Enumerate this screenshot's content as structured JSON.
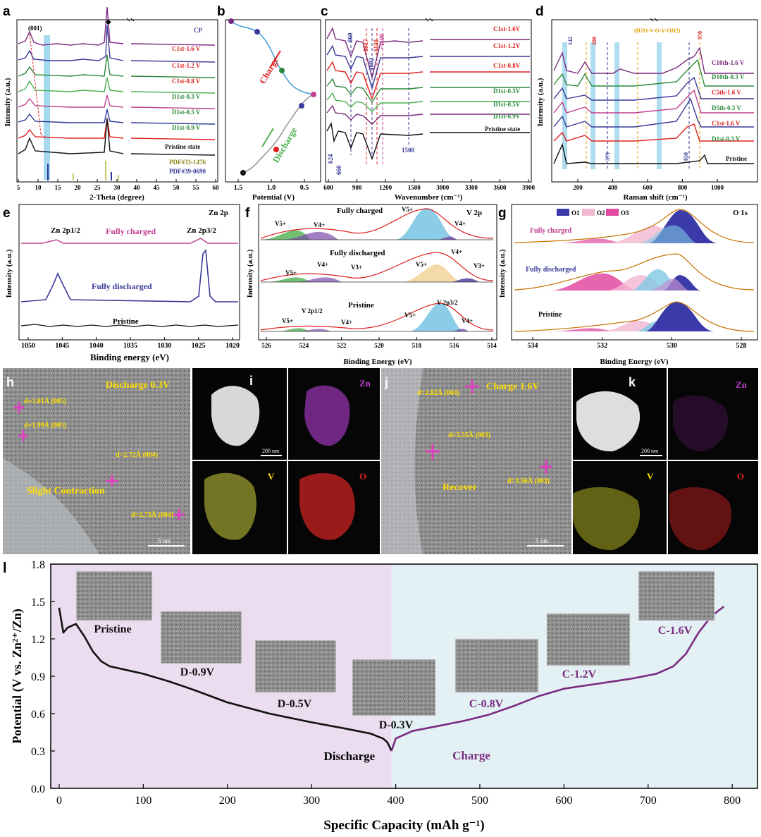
{
  "panels": {
    "a": {
      "letter": "a",
      "xlabel": "2-Theta (degree)",
      "ylabel": "Intensity (a.u.)",
      "xticks": [
        "5",
        "10",
        "15",
        "20",
        "25",
        "30",
        "40",
        "45",
        "50",
        "55",
        "60"
      ],
      "peak_label": "(001)",
      "legend": "CP",
      "trace_labels": [
        "C1st-1.6 V",
        "C1st-1.2 V",
        "C1st-0.8 V",
        "D1st-0.3 V",
        "D1st-0.5 V",
        "D1st-0.9 V",
        "Pristine state"
      ],
      "pdf1": "PDF#33-1476",
      "pdf2": "PDF#39-0690"
    },
    "b": {
      "letter": "b",
      "xlabel": "Potential (V)",
      "xticks": [
        "1.5",
        "1.0",
        "0.5"
      ],
      "charge": "Charge",
      "discharge": "Discharge"
    },
    "c": {
      "letter": "c",
      "xlabel": "Wavenumber (cm⁻¹)",
      "xticks": [
        "600",
        "900",
        "1200",
        "1500",
        "3000",
        "3300",
        "3600",
        "3900"
      ],
      "trace_labels": [
        "C1st-1.6V",
        "C1st-1.2V",
        "C1st-0.8V",
        "D1st-0.3V",
        "D1st-0.5V",
        "D1st-0.9V",
        "Pristine state"
      ],
      "peaks": [
        "860",
        "~1017",
        "1092",
        "~1130",
        "~1190",
        "624",
        "660",
        "1500"
      ]
    },
    "d": {
      "letter": "d",
      "xlabel": "Raman shift (cm⁻¹)",
      "ylabel": "Intensity (a.u.)",
      "xticks": [
        "200",
        "400",
        "600",
        "800",
        "1000"
      ],
      "trace_labels": [
        "C10th-1.6 V",
        "D10th-0.3 V",
        "C5th-1.6 V",
        "D5th-0.3 V",
        "C1st-1.6 V",
        "D1st-0.3 V",
        "Pristine"
      ],
      "peaks": [
        "142",
        "280",
        "(H2O-V-O-V-OH2)",
        "970",
        "379",
        "850"
      ]
    },
    "e": {
      "letter": "e",
      "title": "Zn 2p",
      "xlabel": "Binding energy (eV)",
      "ylabel": "Intensity (a.u.)",
      "xticks": [
        "1050",
        "1045",
        "1040",
        "1035",
        "1030",
        "1025",
        "1020"
      ],
      "peak_left": "Zn 2p1/2",
      "peak_right": "Zn 2p3/2",
      "labels": [
        "Fully charged",
        "Fully discharged",
        "Pristine"
      ]
    },
    "f": {
      "letter": "f",
      "title": "V 2p",
      "xlabel": "Binding Energy (eV)",
      "ylabel": "Intensity (a.u.)",
      "xticks": [
        "526",
        "524",
        "522",
        "520",
        "518",
        "516",
        "514"
      ],
      "labels": [
        "Fully charged",
        "Fully discharged",
        "Pristine"
      ],
      "species": [
        "V5+",
        "V4+",
        "V3+"
      ],
      "sub_left": "V 2p1/2",
      "sub_right": "V 2p3/2"
    },
    "g": {
      "letter": "g",
      "title": "O 1s",
      "xlabel": "Binding Energy (eV)",
      "ylabel": "Intensity (a.u.)",
      "xticks": [
        "534",
        "532",
        "530",
        "528"
      ],
      "legend": [
        "O1",
        "O2",
        "O3"
      ],
      "labels": [
        "Fully charged",
        "Fully discharged",
        "Pristine"
      ]
    },
    "h": {
      "letter": "h",
      "title": "Discharge 0.3V",
      "annotations": [
        "d=3.01Å (005)",
        "d=1.99Å (005)",
        "d=2.72Å (004)",
        "d=2.73Å (004)"
      ],
      "note": "Slight Contraction",
      "scale": "5 nm"
    },
    "i": {
      "letter": "i",
      "scale": "200 nm",
      "elements": [
        "Zn",
        "V",
        "O"
      ]
    },
    "j": {
      "letter": "j",
      "title": "Charge 1.6V",
      "annotations": [
        "d=2.82Å (004)",
        "d=3.55Å (003)",
        "d=3.56Å (003)"
      ],
      "note": "Recover",
      "scale": "5 nm"
    },
    "k": {
      "letter": "k",
      "scale": "200 nm",
      "elements": [
        "Zn",
        "V",
        "O"
      ]
    }
  },
  "chart_data": {
    "type": "line",
    "letter": "l",
    "xlabel": "Specific Capacity (mAh g⁻¹)",
    "ylabel": "Potential (V vs. Zn²⁺/Zn)",
    "xlim": [
      -10,
      830
    ],
    "ylim": [
      0.0,
      1.8
    ],
    "xticks": [
      "0",
      "100",
      "200",
      "300",
      "400",
      "500",
      "600",
      "700",
      "800"
    ],
    "yticks": [
      "0.0",
      "0.3",
      "0.6",
      "0.9",
      "1.2",
      "1.5",
      "1.8"
    ],
    "regions": [
      {
        "name": "Discharge",
        "from": -10,
        "to": 395,
        "color": "#ecdcef"
      },
      {
        "name": "Charge",
        "from": 395,
        "to": 830,
        "color": "#e3f1f4"
      }
    ],
    "series": [
      {
        "name": "Discharge",
        "color": "#111111",
        "x": [
          0,
          5,
          10,
          20,
          30,
          40,
          50,
          60,
          80,
          100,
          130,
          160,
          200,
          250,
          300,
          340,
          370,
          385,
          390,
          393,
          395
        ],
        "y": [
          1.45,
          1.25,
          1.29,
          1.32,
          1.22,
          1.1,
          1.02,
          0.98,
          0.95,
          0.92,
          0.86,
          0.79,
          0.69,
          0.6,
          0.53,
          0.48,
          0.44,
          0.4,
          0.37,
          0.33,
          0.3
        ]
      },
      {
        "name": "Charge",
        "color": "#7a2a80",
        "x": [
          395,
          400,
          420,
          450,
          480,
          510,
          540,
          570,
          600,
          640,
          680,
          710,
          730,
          745,
          760,
          775,
          790
        ],
        "y": [
          0.3,
          0.4,
          0.46,
          0.5,
          0.54,
          0.59,
          0.66,
          0.74,
          0.8,
          0.84,
          0.88,
          0.92,
          0.98,
          1.08,
          1.25,
          1.38,
          1.46
        ]
      }
    ],
    "point_labels": [
      {
        "text": "Pristine",
        "color": "#111111"
      },
      {
        "text": "D-0.9V",
        "color": "#111111"
      },
      {
        "text": "D-0.5V",
        "color": "#111111"
      },
      {
        "text": "D-0.3V",
        "color": "#111111"
      },
      {
        "text": "C-0.8V",
        "color": "#7a2a80"
      },
      {
        "text": "C-1.2V",
        "color": "#7a2a80"
      },
      {
        "text": "C-1.6V",
        "color": "#7a2a80"
      }
    ],
    "annotations": [
      "Discharge",
      "Charge"
    ]
  }
}
